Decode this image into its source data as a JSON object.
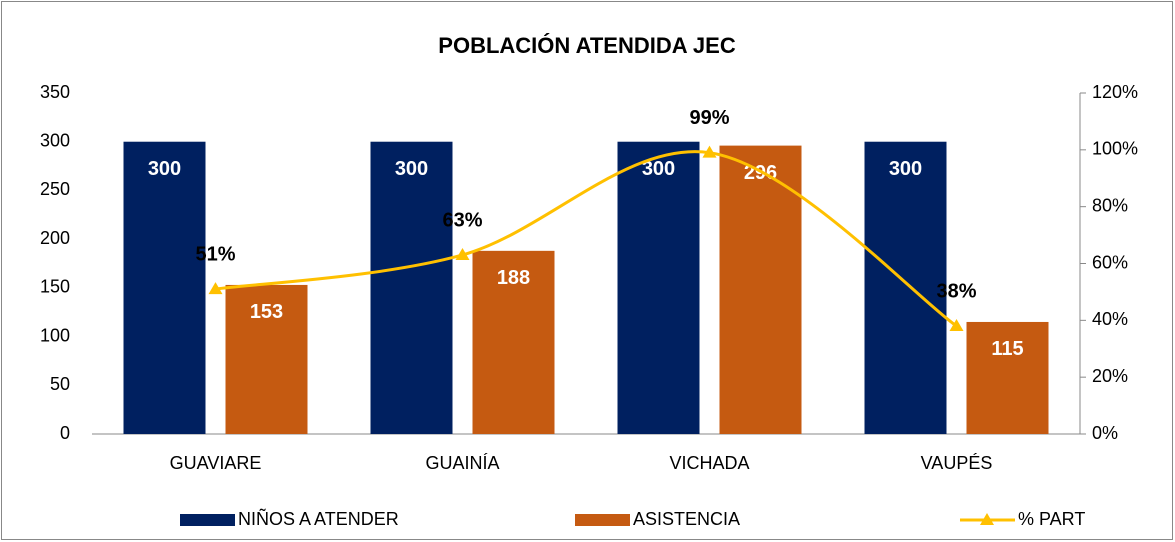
{
  "chart_data": {
    "type": "bar",
    "title": "POBLACIÓN ATENDIDA JEC",
    "categories": [
      "GUAVIARE",
      "GUAINÍA",
      "VICHADA",
      "VAUPÉS"
    ],
    "series": [
      {
        "name": "NIÑOS A ATENDER",
        "color": "#002060",
        "values": [
          300,
          300,
          300,
          300
        ]
      },
      {
        "name": "ASISTENCIA",
        "color": "#c55a11",
        "values": [
          153,
          188,
          296,
          115
        ]
      },
      {
        "name": "% PART",
        "color": "#ffc000",
        "type": "line",
        "axis": "y2",
        "values": [
          51,
          63,
          99,
          38
        ],
        "value_labels": [
          "51%",
          "63%",
          "99%",
          "38%"
        ]
      }
    ],
    "ylim": [
      0,
      350
    ],
    "yticks": [
      0,
      50,
      100,
      150,
      200,
      250,
      300,
      350
    ],
    "y2lim": [
      0,
      120
    ],
    "y2ticks": [
      {
        "value": 0,
        "label": "0%"
      },
      {
        "value": 20,
        "label": "20%"
      },
      {
        "value": 40,
        "label": "40%"
      },
      {
        "value": 60,
        "label": "60%"
      },
      {
        "value": 80,
        "label": "80%"
      },
      {
        "value": 100,
        "label": "100%"
      },
      {
        "value": 120,
        "label": "120%"
      }
    ],
    "grid": false,
    "legend": "bottom"
  }
}
